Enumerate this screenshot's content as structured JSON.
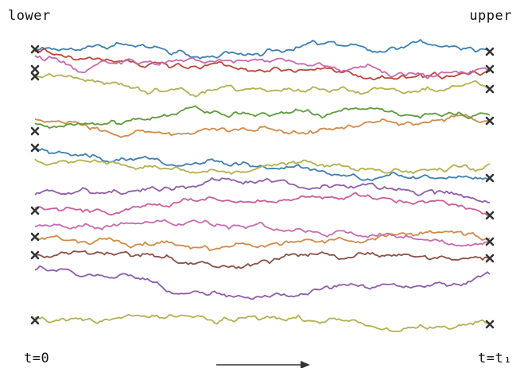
{
  "labels": {
    "lower": "lower",
    "upper": "upper",
    "t_start": "t=0",
    "t_end": "t=t₁"
  },
  "colors": {
    "palette": [
      "#3d7fb0",
      "#b5483a",
      "#c76bb0",
      "#b3b052",
      "#5e9a3c",
      "#d08a4a",
      "#8e5ea8",
      "#8a5044",
      "#4aa8c8",
      "#c85f9a"
    ],
    "marker": "#333333",
    "arrow": "#333333"
  },
  "icons": {
    "marker": "x-marker-icon",
    "arrow": "right-arrow-icon"
  },
  "paths": [
    {
      "color_index": 0,
      "start": 62,
      "end": 65
    },
    {
      "color_index": 1,
      "start": 65,
      "end": 90
    },
    {
      "color_index": 2,
      "start": 70,
      "end": 87
    },
    {
      "color_index": 3,
      "start": 93,
      "end": 112
    },
    {
      "color_index": 5,
      "start": 150,
      "end": 152
    },
    {
      "color_index": 4,
      "start": 155,
      "end": 145
    },
    {
      "color_index": 0,
      "start": 185,
      "end": 225
    },
    {
      "color_index": 3,
      "start": 200,
      "end": 206
    },
    {
      "color_index": 6,
      "start": 245,
      "end": 255
    },
    {
      "color_index": 9,
      "start": 262,
      "end": 270
    },
    {
      "color_index": 2,
      "start": 285,
      "end": 305
    },
    {
      "color_index": 5,
      "start": 300,
      "end": 300
    },
    {
      "color_index": 7,
      "start": 320,
      "end": 325
    },
    {
      "color_index": 6,
      "start": 340,
      "end": 345
    },
    {
      "color_index": 3,
      "start": 400,
      "end": 408
    }
  ],
  "markers": {
    "left": [
      62,
      87,
      96,
      165,
      186,
      265,
      298,
      321,
      403
    ],
    "right": [
      65,
      87,
      112,
      152,
      224,
      271,
      304,
      325,
      408
    ]
  }
}
